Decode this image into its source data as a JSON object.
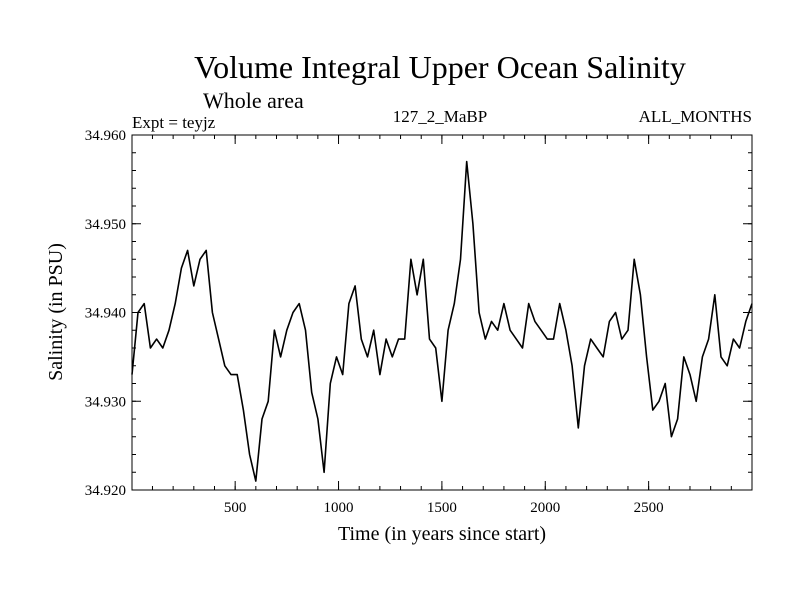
{
  "chart_data": {
    "type": "line",
    "title": "Volume Integral Upper Ocean Salinity",
    "subtitle": "Whole area",
    "expt_label": "Expt = teyjz",
    "run_label": "127_2_MaBP",
    "months_label": "ALL_MONTHS",
    "xlabel": "Time (in years since start)",
    "ylabel": "Salinity (in PSU)",
    "xlim": [
      1,
      3000
    ],
    "ylim": [
      34.92,
      34.96
    ],
    "x_ticks": [
      500,
      1000,
      1500,
      2000,
      2500
    ],
    "x_tick_labels": [
      "500",
      "1000",
      "1500",
      "2000",
      "2500"
    ],
    "y_ticks": [
      34.92,
      34.93,
      34.94,
      34.95,
      34.96
    ],
    "y_tick_labels": [
      "34.920",
      "34.930",
      "34.940",
      "34.950",
      "34.960"
    ],
    "series": [
      {
        "name": "salinity",
        "x": [
          1,
          30,
          60,
          90,
          120,
          150,
          180,
          210,
          240,
          270,
          300,
          330,
          360,
          390,
          420,
          450,
          480,
          510,
          540,
          570,
          600,
          630,
          660,
          690,
          720,
          750,
          780,
          810,
          840,
          870,
          900,
          930,
          960,
          990,
          1020,
          1050,
          1080,
          1110,
          1140,
          1170,
          1200,
          1230,
          1260,
          1290,
          1320,
          1350,
          1380,
          1410,
          1440,
          1470,
          1500,
          1530,
          1560,
          1590,
          1620,
          1650,
          1680,
          1710,
          1740,
          1770,
          1800,
          1830,
          1860,
          1890,
          1920,
          1950,
          1980,
          2010,
          2040,
          2070,
          2100,
          2130,
          2160,
          2190,
          2220,
          2250,
          2280,
          2310,
          2340,
          2370,
          2400,
          2430,
          2460,
          2490,
          2520,
          2550,
          2580,
          2610,
          2640,
          2670,
          2700,
          2730,
          2760,
          2790,
          2820,
          2850,
          2880,
          2910,
          2940,
          2970,
          3000
        ],
        "y": [
          34.933,
          34.94,
          34.941,
          34.936,
          34.937,
          34.936,
          34.938,
          34.941,
          34.945,
          34.947,
          34.943,
          34.946,
          34.947,
          34.94,
          34.937,
          34.934,
          34.933,
          34.933,
          34.929,
          34.924,
          34.921,
          34.928,
          34.93,
          34.938,
          34.935,
          34.938,
          34.94,
          34.941,
          34.938,
          34.931,
          34.928,
          34.922,
          34.932,
          34.935,
          34.933,
          34.941,
          34.943,
          34.937,
          34.935,
          34.938,
          34.933,
          34.937,
          34.935,
          34.937,
          34.937,
          34.946,
          34.942,
          34.946,
          34.937,
          34.936,
          34.93,
          34.938,
          34.941,
          34.946,
          34.957,
          34.95,
          34.94,
          34.937,
          34.939,
          34.938,
          34.941,
          34.938,
          34.937,
          34.936,
          34.941,
          34.939,
          34.938,
          34.937,
          34.937,
          34.941,
          34.938,
          34.934,
          34.927,
          34.934,
          34.937,
          34.936,
          34.935,
          34.939,
          34.94,
          34.937,
          34.938,
          34.946,
          34.942,
          34.935,
          34.929,
          34.93,
          34.932,
          34.926,
          34.928,
          34.935,
          34.933,
          34.93,
          34.935,
          34.937,
          34.942,
          34.935,
          34.934,
          34.937,
          34.936,
          34.939,
          34.941
        ]
      }
    ]
  }
}
